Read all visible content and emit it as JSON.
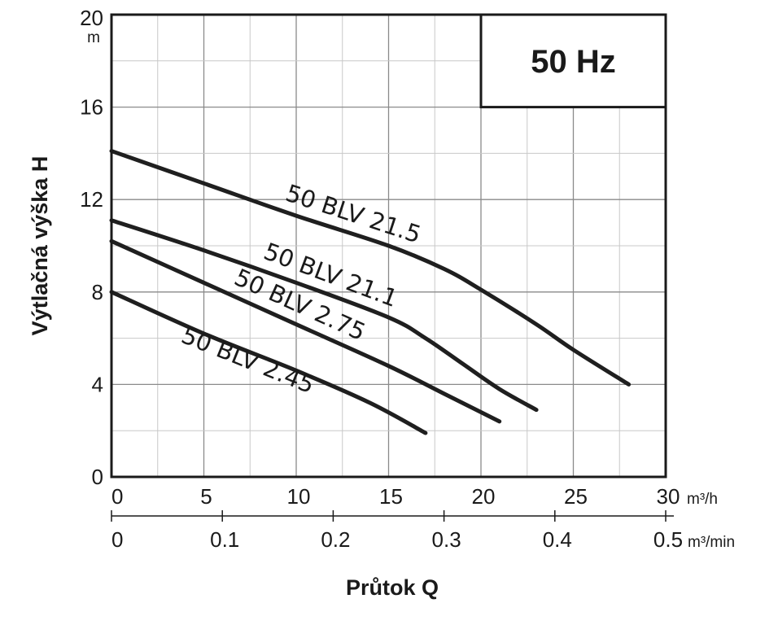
{
  "chart_data": {
    "type": "line",
    "title": "",
    "badge": "50 Hz",
    "xlabel": "Průtok Q",
    "ylabel": "Výtlačná výška H",
    "y_unit": "m",
    "x_unit_primary": "m³/h",
    "x_unit_secondary": "m³/min",
    "xlim": [
      0,
      30
    ],
    "ylim": [
      0,
      20
    ],
    "y_ticks": [
      "0",
      "4",
      "8",
      "12",
      "16",
      "20"
    ],
    "x_ticks_primary": [
      "0",
      "5",
      "10",
      "15",
      "20",
      "25",
      "30"
    ],
    "x_ticks_secondary": [
      "0",
      "0.1",
      "0.2",
      "0.3",
      "0.4",
      "0.5"
    ],
    "grid": true,
    "series": [
      {
        "name": "50 BLV 21.5",
        "x": [
          0,
          5,
          10,
          15,
          18,
          20,
          23,
          25,
          28
        ],
        "y": [
          14.1,
          12.7,
          11.3,
          10.0,
          9.0,
          8.1,
          6.6,
          5.5,
          4.0
        ]
      },
      {
        "name": "50 BLV 21.1",
        "x": [
          0,
          5,
          10,
          15,
          17,
          19,
          21,
          23
        ],
        "y": [
          11.1,
          9.8,
          8.4,
          6.9,
          6.0,
          4.9,
          3.8,
          2.9
        ]
      },
      {
        "name": "50 BLV 2.75",
        "x": [
          0,
          5,
          10,
          15,
          18,
          21
        ],
        "y": [
          10.2,
          8.4,
          6.6,
          4.8,
          3.6,
          2.4
        ]
      },
      {
        "name": "50 BLV 2.45",
        "x": [
          0,
          5,
          10,
          14,
          17
        ],
        "y": [
          8.0,
          6.2,
          4.6,
          3.2,
          1.9
        ]
      }
    ]
  }
}
